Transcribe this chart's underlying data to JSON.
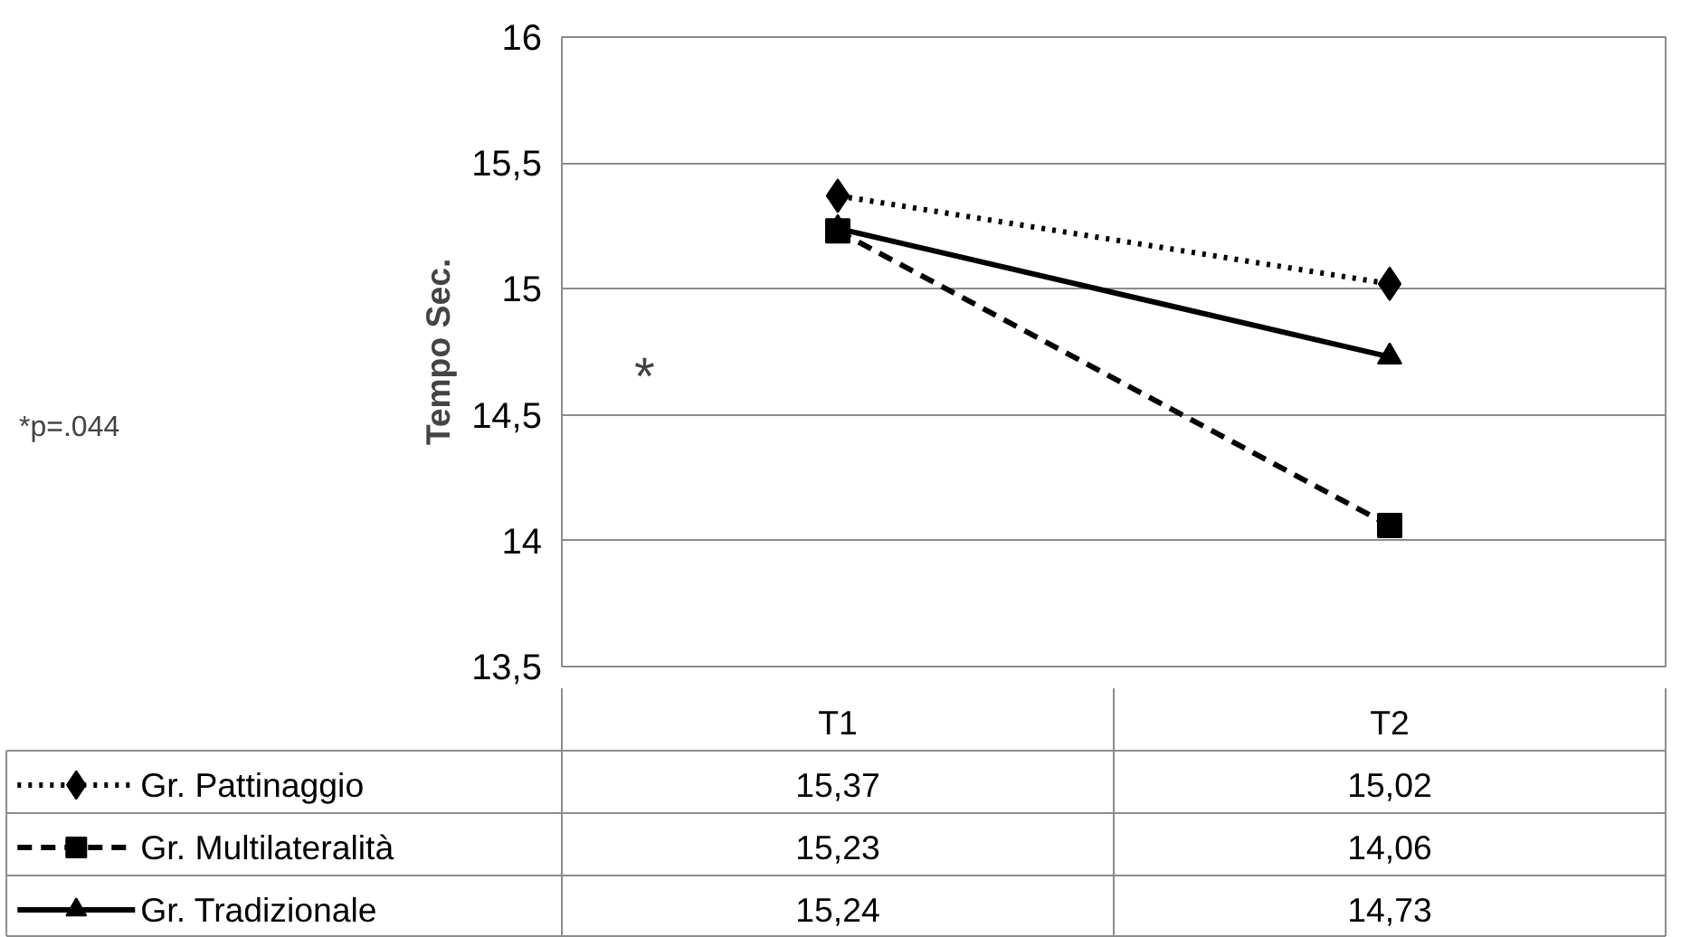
{
  "chart_data": {
    "type": "line",
    "ylabel": "Tempo Sec.",
    "categories": [
      "T1",
      "T2"
    ],
    "series": [
      {
        "name": "Gr. Pattinaggio",
        "color": "#000000",
        "values": [
          15.37,
          15.02
        ],
        "value_labels": [
          "15,37",
          "15,02"
        ],
        "marker": "diamond",
        "line_style": "dotted"
      },
      {
        "name": "Gr. Multilateralità",
        "color": "#000000",
        "values": [
          15.23,
          14.06
        ],
        "value_labels": [
          "15,23",
          "14,06"
        ],
        "marker": "square",
        "line_style": "dashed"
      },
      {
        "name": "Gr. Tradizionale",
        "color": "#000000",
        "values": [
          15.24,
          14.73
        ],
        "value_labels": [
          "15,24",
          "14,73"
        ],
        "marker": "triangle",
        "line_style": "solid"
      }
    ],
    "ylim": [
      13.5,
      16
    ],
    "yticks": [
      {
        "value": 13.5,
        "label": "13,5"
      },
      {
        "value": 14,
        "label": "14"
      },
      {
        "value": 14.5,
        "label": "14,5"
      },
      {
        "value": 15,
        "label": "15"
      },
      {
        "value": 15.5,
        "label": "15,5"
      },
      {
        "value": 16,
        "label": "16"
      }
    ],
    "grid": "y",
    "legend": "bottom",
    "annotations": [
      "*p=.044",
      "*"
    ]
  }
}
